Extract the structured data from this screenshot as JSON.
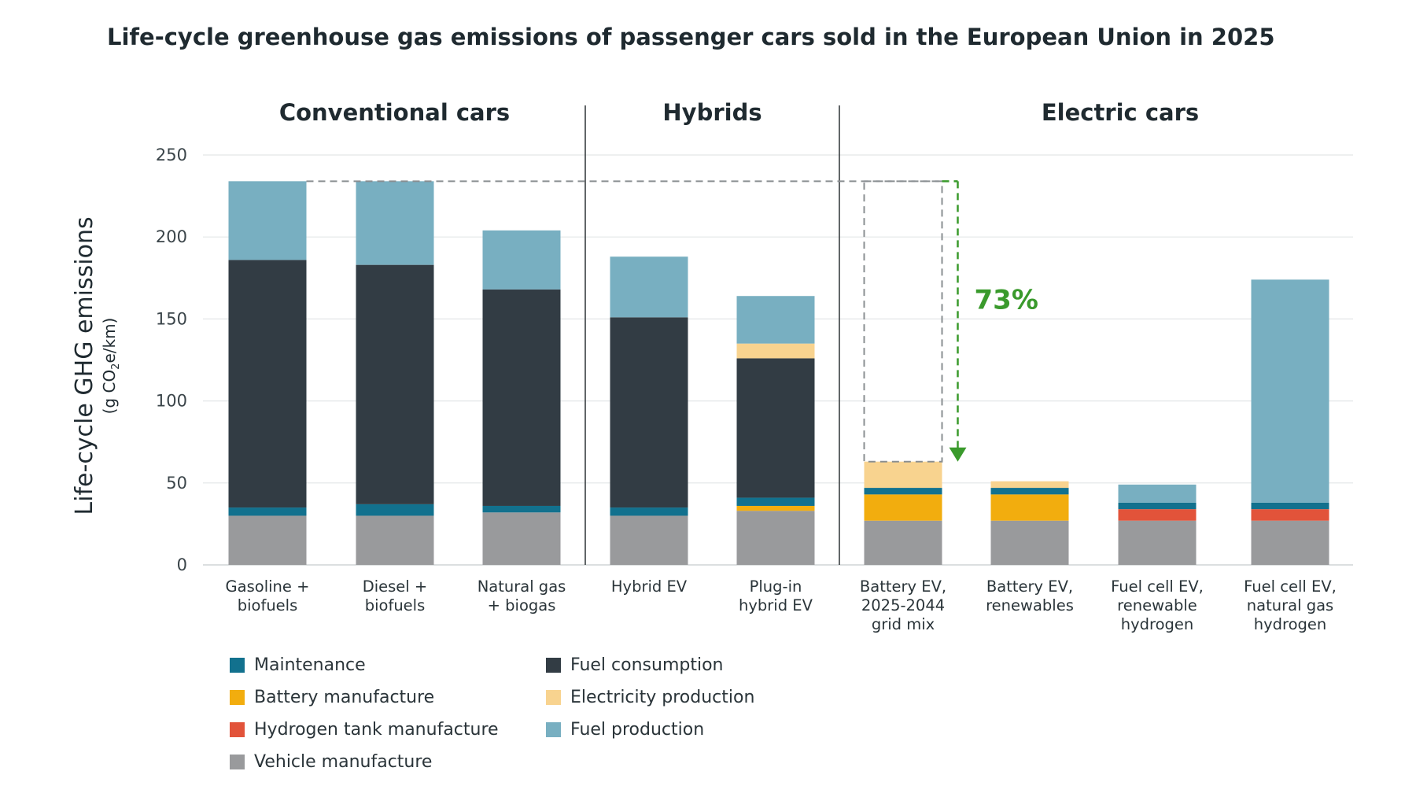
{
  "chart_data": {
    "type": "stacked-bar",
    "title": "Life-cycle greenhouse gas emissions of passenger cars sold in the European Union in 2025",
    "ylabel": "Life-cycle GHG emissions",
    "ylabel_unit_parts": [
      "(g CO",
      "2",
      "e/km)"
    ],
    "ylim": [
      0,
      250
    ],
    "yticks": [
      0,
      50,
      100,
      150,
      200,
      250
    ],
    "groups": [
      {
        "label": "Conventional cars",
        "start": 0,
        "end": 2
      },
      {
        "label": "Hybrids",
        "start": 3,
        "end": 4
      },
      {
        "label": "Electric cars",
        "start": 5,
        "end": 8
      }
    ],
    "categories": [
      [
        "Gasoline +",
        "biofuels"
      ],
      [
        "Diesel +",
        "biofuels"
      ],
      [
        "Natural gas",
        "+ biogas"
      ],
      [
        "Hybrid EV"
      ],
      [
        "Plug-in",
        "hybrid EV"
      ],
      [
        "Battery EV,",
        "2025-2044",
        "grid mix"
      ],
      [
        "Battery EV,",
        "renewables"
      ],
      [
        "Fuel cell EV,",
        "renewable",
        "hydrogen"
      ],
      [
        "Fuel cell EV,",
        "natural gas",
        "hydrogen"
      ]
    ],
    "series": [
      {
        "name": "Vehicle manufacture",
        "key": "vehicle",
        "color": "#999a9c",
        "values": [
          30,
          30,
          32,
          30,
          33,
          27,
          27,
          27,
          27
        ]
      },
      {
        "name": "Hydrogen tank manufacture",
        "key": "h2tank",
        "color": "#e2533a",
        "values": [
          0,
          0,
          0,
          0,
          0,
          0,
          0,
          7,
          7
        ]
      },
      {
        "name": "Battery manufacture",
        "key": "battery",
        "color": "#f2ad0e",
        "values": [
          0,
          0,
          0,
          0,
          3,
          16,
          16,
          0,
          0
        ]
      },
      {
        "name": "Maintenance",
        "key": "maintenance",
        "color": "#12718e",
        "values": [
          5,
          7,
          4,
          5,
          5,
          4,
          4,
          4,
          4
        ]
      },
      {
        "name": "Fuel consumption",
        "key": "fuel_consumption",
        "color": "#323c44",
        "values": [
          151,
          146,
          132,
          116,
          85,
          0,
          0,
          0,
          0
        ]
      },
      {
        "name": "Electricity production",
        "key": "electricity",
        "color": "#f8d38f",
        "values": [
          0,
          0,
          0,
          0,
          9,
          16,
          4,
          0,
          0
        ]
      },
      {
        "name": "Fuel production",
        "key": "fuel_production",
        "color": "#78afc1",
        "values": [
          48,
          51,
          36,
          37,
          29,
          0,
          0,
          11,
          136
        ]
      }
    ],
    "legend": [
      {
        "name": "Maintenance",
        "color": "#12718e"
      },
      {
        "name": "Fuel consumption",
        "color": "#323c44"
      },
      {
        "name": "Battery manufacture",
        "color": "#f2ad0e"
      },
      {
        "name": "Electricity production",
        "color": "#f8d38f"
      },
      {
        "name": "Hydrogen tank manufacture",
        "color": "#e2533a"
      },
      {
        "name": "Fuel production",
        "color": "#78afc1"
      },
      {
        "name": "Vehicle manufacture",
        "color": "#999a9c"
      }
    ],
    "annotation": {
      "text": "73%",
      "color": "#3a9a2c",
      "from_value": 234,
      "to_value": 63,
      "bar_index": 5
    }
  }
}
